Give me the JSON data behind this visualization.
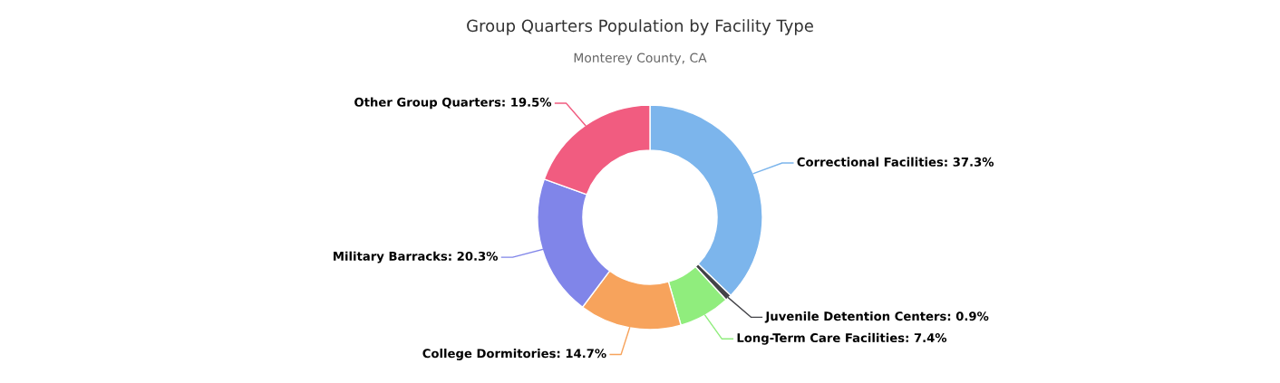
{
  "chart_data": {
    "type": "donut",
    "title": "Group Quarters Population by Facility Type",
    "subtitle": "Monterey County, CA",
    "categories": [
      "Correctional Facilities",
      "Juvenile Detention Centers",
      "Long-Term Care Facilities",
      "College Dormitories",
      "Military Barracks",
      "Other Group Quarters"
    ],
    "values": [
      37.3,
      0.9,
      7.4,
      14.7,
      20.3,
      19.5
    ],
    "colors": [
      "#7cb5ec",
      "#434348",
      "#90ed7d",
      "#f7a35c",
      "#8085e9",
      "#f15c80"
    ],
    "value_labels": [
      "37.3%",
      "0.9%",
      "7.4%",
      "14.7%",
      "20.3%",
      "19.5%"
    ]
  }
}
